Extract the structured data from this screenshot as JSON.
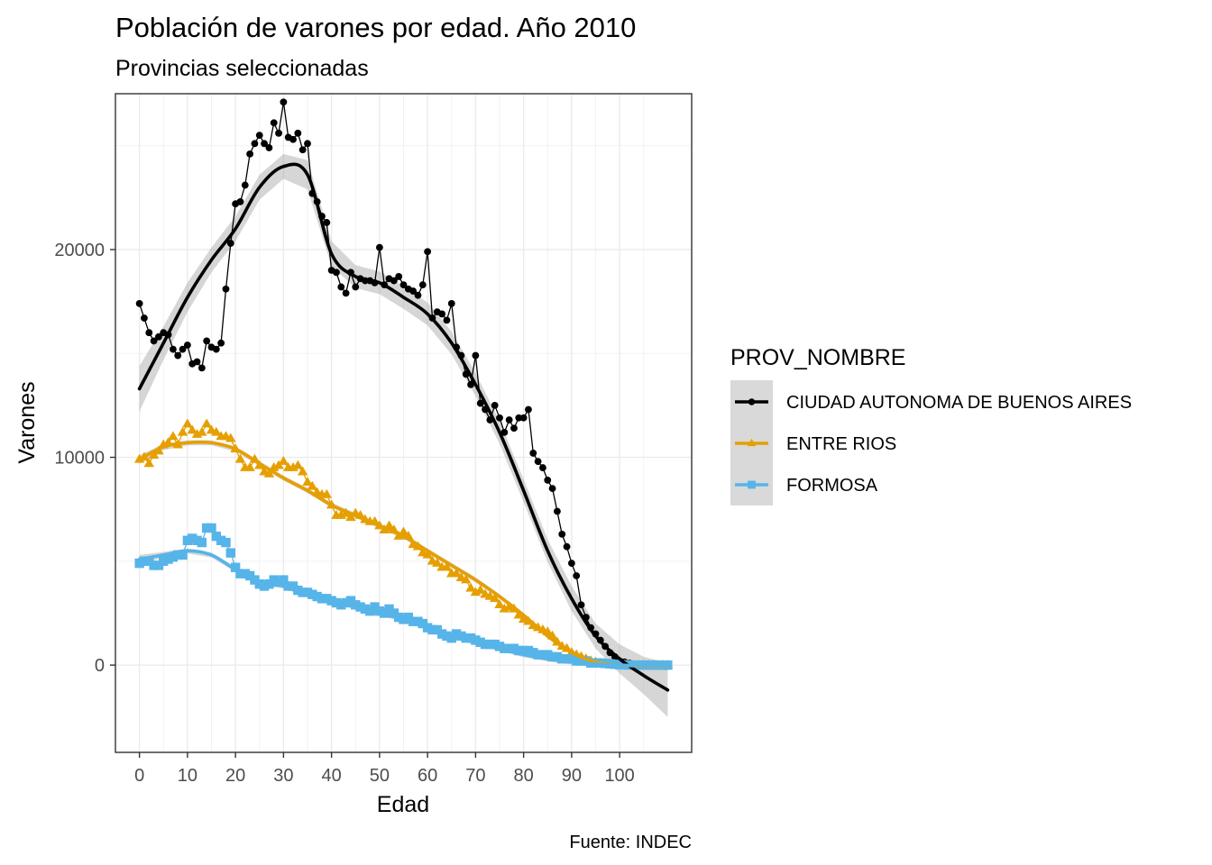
{
  "chart_data": {
    "type": "line",
    "title": "Población de varones por edad. Año 2010",
    "subtitle": "Provincias seleccionadas",
    "xlabel": "Edad",
    "ylabel": "Varones",
    "caption": "Fuente: INDEC",
    "legend_title": "PROV_NOMBRE",
    "legend_position": "right",
    "grid": true,
    "xlim": [
      -5,
      115
    ],
    "ylim": [
      -4200,
      27500
    ],
    "x_ticks": [
      0,
      10,
      20,
      30,
      40,
      50,
      60,
      70,
      80,
      90,
      100
    ],
    "x_tick_labels": [
      "0",
      "10",
      "20",
      "30",
      "40",
      "50",
      "60",
      "70",
      "80",
      "90",
      "100"
    ],
    "y_ticks": [
      0,
      10000,
      20000
    ],
    "y_tick_labels": [
      "0",
      "10000",
      "20000"
    ],
    "series": [
      {
        "name": "CIUDAD AUTONOMA DE BUENOS AIRES",
        "color": "#000000",
        "marker": "circle",
        "x": [
          0,
          1,
          2,
          3,
          4,
          5,
          6,
          7,
          8,
          9,
          10,
          11,
          12,
          13,
          14,
          15,
          16,
          17,
          18,
          19,
          20,
          21,
          22,
          23,
          24,
          25,
          26,
          27,
          28,
          29,
          30,
          31,
          32,
          33,
          34,
          35,
          36,
          37,
          38,
          39,
          40,
          41,
          42,
          43,
          44,
          45,
          46,
          47,
          48,
          49,
          50,
          51,
          52,
          53,
          54,
          55,
          56,
          57,
          58,
          59,
          60,
          61,
          62,
          63,
          64,
          65,
          66,
          67,
          68,
          69,
          70,
          71,
          72,
          73,
          74,
          75,
          76,
          77,
          78,
          79,
          80,
          81,
          82,
          83,
          84,
          85,
          86,
          87,
          88,
          89,
          90,
          91,
          92,
          93,
          94,
          95,
          96,
          97,
          98,
          99,
          100,
          101,
          102,
          103,
          104,
          105,
          106,
          107,
          108,
          109,
          110
        ],
        "y": [
          17400,
          16700,
          16000,
          15600,
          15800,
          16000,
          15900,
          15200,
          14900,
          15200,
          15400,
          14500,
          14600,
          14300,
          15600,
          15300,
          15200,
          15500,
          18100,
          20300,
          22200,
          22300,
          23100,
          24600,
          25100,
          25500,
          25100,
          24900,
          26100,
          25600,
          27100,
          25400,
          25300,
          25600,
          24800,
          25100,
          22700,
          22300,
          21600,
          21300,
          19000,
          18900,
          18200,
          17900,
          18900,
          18200,
          18600,
          18500,
          18500,
          18400,
          20100,
          18300,
          18600,
          18500,
          18700,
          18300,
          18100,
          18000,
          17800,
          18300,
          19900,
          16700,
          17000,
          16900,
          16600,
          17400,
          15300,
          14900,
          14000,
          13500,
          14900,
          12600,
          12300,
          11800,
          12500,
          11900,
          11200,
          11800,
          11400,
          11900,
          11900,
          12300,
          10200,
          9800,
          9500,
          8900,
          8500,
          7400,
          6300,
          5700,
          4900,
          4300,
          2900,
          2300,
          1800,
          1500,
          1200,
          900,
          600,
          400,
          200,
          150,
          100,
          60,
          40,
          20,
          10,
          5,
          0,
          0,
          0
        ]
      },
      {
        "name": "ENTRE RIOS",
        "color": "#E69F00",
        "marker": "triangle",
        "x": [
          0,
          1,
          2,
          3,
          4,
          5,
          6,
          7,
          8,
          9,
          10,
          11,
          12,
          13,
          14,
          15,
          16,
          17,
          18,
          19,
          20,
          21,
          22,
          23,
          24,
          25,
          26,
          27,
          28,
          29,
          30,
          31,
          32,
          33,
          34,
          35,
          36,
          37,
          38,
          39,
          40,
          41,
          42,
          43,
          44,
          45,
          46,
          47,
          48,
          49,
          50,
          51,
          52,
          53,
          54,
          55,
          56,
          57,
          58,
          59,
          60,
          61,
          62,
          63,
          64,
          65,
          66,
          67,
          68,
          69,
          70,
          71,
          72,
          73,
          74,
          75,
          76,
          77,
          78,
          79,
          80,
          81,
          82,
          83,
          84,
          85,
          86,
          87,
          88,
          89,
          90,
          91,
          92,
          93,
          94,
          95,
          96,
          97,
          98,
          99,
          100,
          101,
          102,
          103,
          104,
          105,
          106,
          107,
          108,
          109,
          110
        ],
        "y": [
          9900,
          10000,
          9700,
          10100,
          10300,
          10600,
          10700,
          11000,
          10600,
          11200,
          11600,
          11300,
          11100,
          11200,
          11600,
          11300,
          11200,
          11000,
          11000,
          10900,
          10400,
          9900,
          9500,
          9500,
          9900,
          9600,
          9300,
          9200,
          9500,
          9600,
          9800,
          9500,
          9500,
          9600,
          9300,
          8800,
          8600,
          8300,
          8200,
          8200,
          7700,
          7200,
          7200,
          7300,
          7100,
          7300,
          7200,
          7000,
          6900,
          6900,
          6700,
          6500,
          6700,
          6500,
          6200,
          6400,
          6200,
          5800,
          5700,
          5400,
          5300,
          5000,
          4900,
          4700,
          4700,
          4400,
          4400,
          4200,
          4100,
          3700,
          3500,
          3600,
          3400,
          3300,
          3200,
          2900,
          2700,
          2800,
          2700,
          2400,
          2200,
          2100,
          1900,
          1800,
          1700,
          1600,
          1400,
          1100,
          900,
          800,
          600,
          500,
          400,
          300,
          200,
          150,
          100,
          80,
          60,
          40,
          20,
          10,
          5,
          0,
          0,
          0,
          0,
          0,
          0,
          0,
          0
        ]
      },
      {
        "name": "FORMOSA",
        "color": "#56B4E9",
        "marker": "square",
        "x": [
          0,
          1,
          2,
          3,
          4,
          5,
          6,
          7,
          8,
          9,
          10,
          11,
          12,
          13,
          14,
          15,
          16,
          17,
          18,
          19,
          20,
          21,
          22,
          23,
          24,
          25,
          26,
          27,
          28,
          29,
          30,
          31,
          32,
          33,
          34,
          35,
          36,
          37,
          38,
          39,
          40,
          41,
          42,
          43,
          44,
          45,
          46,
          47,
          48,
          49,
          50,
          51,
          52,
          53,
          54,
          55,
          56,
          57,
          58,
          59,
          60,
          61,
          62,
          63,
          64,
          65,
          66,
          67,
          68,
          69,
          70,
          71,
          72,
          73,
          74,
          75,
          76,
          77,
          78,
          79,
          80,
          81,
          82,
          83,
          84,
          85,
          86,
          87,
          88,
          89,
          90,
          91,
          92,
          93,
          94,
          95,
          96,
          97,
          98,
          99,
          100,
          101,
          102,
          103,
          104,
          105,
          106,
          107,
          108,
          109,
          110
        ],
        "y": [
          4900,
          5000,
          5000,
          4800,
          4800,
          5000,
          5100,
          5200,
          5300,
          5300,
          6000,
          6100,
          6000,
          5900,
          6600,
          6600,
          6200,
          6000,
          5900,
          5400,
          4700,
          4400,
          4400,
          4300,
          4100,
          3900,
          3800,
          3900,
          4100,
          4000,
          4100,
          3800,
          3800,
          3600,
          3500,
          3500,
          3400,
          3300,
          3200,
          3200,
          3100,
          3000,
          2900,
          3000,
          3100,
          2900,
          2800,
          2700,
          2600,
          2800,
          2600,
          2500,
          2700,
          2500,
          2300,
          2200,
          2300,
          2100,
          2100,
          2000,
          1800,
          1700,
          1700,
          1500,
          1400,
          1300,
          1500,
          1400,
          1300,
          1300,
          1200,
          1100,
          1000,
          1000,
          1000,
          900,
          800,
          800,
          800,
          700,
          700,
          700,
          600,
          500,
          500,
          500,
          400,
          400,
          300,
          300,
          300,
          200,
          200,
          200,
          100,
          100,
          100,
          80,
          60,
          40,
          20,
          10,
          5,
          0,
          0,
          0,
          0,
          0,
          0,
          0,
          0
        ]
      }
    ],
    "smooth": [
      {
        "name": "CIUDAD AUTONOMA DE BUENOS AIRES",
        "x": [
          0,
          5,
          10,
          15,
          20,
          25,
          30,
          35,
          40,
          45,
          50,
          55,
          60,
          65,
          70,
          75,
          80,
          85,
          90,
          95,
          100,
          105,
          110
        ],
        "y": [
          13300,
          15500,
          17700,
          19500,
          21000,
          23000,
          24000,
          23600,
          19800,
          18700,
          18400,
          17700,
          16900,
          15500,
          13500,
          11200,
          8400,
          5500,
          3200,
          1400,
          300,
          -500,
          -1200
        ],
        "band": [
          1100,
          800,
          700,
          600,
          600,
          600,
          600,
          700,
          600,
          550,
          550,
          550,
          550,
          550,
          550,
          550,
          550,
          550,
          600,
          600,
          700,
          900,
          1300
        ]
      },
      {
        "name": "ENTRE RIOS",
        "x": [
          0,
          5,
          10,
          15,
          20,
          25,
          30,
          35,
          40,
          45,
          50,
          55,
          60,
          65,
          70,
          75,
          80,
          85,
          90,
          95,
          100,
          105,
          110
        ],
        "y": [
          9900,
          10500,
          10700,
          10700,
          10400,
          9700,
          9000,
          8400,
          7700,
          7200,
          6700,
          6200,
          5500,
          4800,
          4100,
          3300,
          2400,
          1400,
          600,
          150,
          0,
          -50,
          -50
        ],
        "band": [
          200,
          150,
          120,
          120,
          120,
          120,
          120,
          120,
          120,
          120,
          120,
          120,
          120,
          120,
          120,
          120,
          120,
          120,
          120,
          120,
          120,
          150,
          200
        ]
      },
      {
        "name": "FORMOSA",
        "x": [
          0,
          5,
          10,
          15,
          20,
          25,
          30,
          35,
          40,
          45,
          50,
          55,
          60,
          65,
          70,
          75,
          80,
          85,
          90,
          95,
          100,
          105,
          110
        ],
        "y": [
          5100,
          5300,
          5500,
          5300,
          4600,
          4000,
          3800,
          3400,
          3100,
          2800,
          2500,
          2200,
          1800,
          1400,
          1100,
          800,
          500,
          300,
          150,
          50,
          0,
          -30,
          -30
        ],
        "band": [
          200,
          150,
          120,
          120,
          120,
          120,
          120,
          120,
          120,
          120,
          120,
          120,
          120,
          120,
          120,
          120,
          120,
          120,
          120,
          120,
          120,
          150,
          200
        ]
      }
    ]
  }
}
